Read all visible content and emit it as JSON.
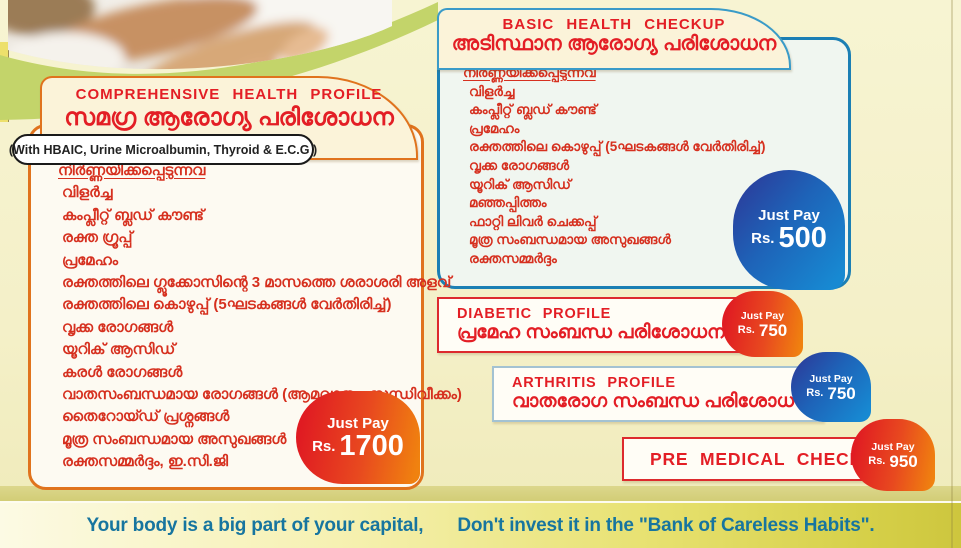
{
  "comprehensive": {
    "title_en": "COMPREHENSIVE HEALTH PROFILE",
    "title_ml": "സമഗ്ര ആരോഗ്യ പരിശോധന",
    "note": "(With HBAIC, Urine Microalbumin, Thyroid & E.C.G )",
    "list_header": "നിർണ്ണയിക്കപ്പെടുന്നവ",
    "items": [
      "വിളർച്ച",
      "കംപ്ലീറ്റ് ബ്ലഡ് കൗണ്ട്",
      "രക്ത ഗ്രൂപ്പ്",
      "പ്രമേഹം",
      "രക്തത്തിലെ ഗ്ലൂക്കോസിന്റെ 3 മാസത്തെ ശരാശരി അളവ്",
      "രക്തത്തിലെ കൊഴുപ്പ് (5ഘടകങ്ങൾ വേർതിരിച്ച്)",
      "വൃക്ക രോഗങ്ങൾ",
      "യൂറിക് ആസിഡ്",
      "കരൾ രോഗങ്ങൾ",
      "വാതസംബന്ധമായ രോഗങ്ങൾ (ആമവാതം, സന്ധിവീക്കം)",
      "തൈറോയ്ഡ് പ്രശ്നങ്ങൾ",
      "മൂത്ര സംബന്ധമായ അസുഖങ്ങൾ",
      "രക്തസമ്മർദ്ദം, ഇ.സി.ജി"
    ],
    "price_label": "Just Pay",
    "currency": "Rs.",
    "price": "1700"
  },
  "basic": {
    "title_en": "BASIC HEALTH CHECKUP",
    "title_ml": "അടിസ്ഥാന ആരോഗ്യ പരിശോധന",
    "list_header": "നിർണ്ണയിക്കപ്പെടുന്നവ",
    "items": [
      "വിളർച്ച",
      "കംപ്ലീറ്റ് ബ്ലഡ് കൗണ്ട്",
      "പ്രമേഹം",
      "രക്തത്തിലെ കൊഴുപ്പ് (5ഘടകങ്ങൾ വേർതിരിച്ച്)",
      "വൃക്ക രോഗങ്ങൾ",
      "യൂറിക് ആസിഡ്",
      "മഞ്ഞപ്പിത്തം",
      "ഫാറ്റി ലിവർ ചെക്കപ്പ്",
      "മൂത്ര സംബന്ധമായ അസുഖങ്ങൾ",
      "രക്തസമ്മർദ്ദം"
    ],
    "price_label": "Just Pay",
    "currency": "Rs.",
    "price": "500"
  },
  "diabetic": {
    "title_en": "DIABETIC PROFILE",
    "title_ml": "പ്രമേഹ സംബന്ധ പരിശോധന",
    "price_label": "Just Pay",
    "currency": "Rs.",
    "price": "750"
  },
  "arthritis": {
    "title_en": "ARTHRITIS PROFILE",
    "title_ml": "വാതരോഗ സംബന്ധ പരിശോധന",
    "price_label": "Just Pay",
    "currency": "Rs.",
    "price": "750"
  },
  "premedical": {
    "title_en": "PRE MEDICAL CHECKUP",
    "price_label": "Just Pay",
    "currency": "Rs.",
    "price": "950"
  },
  "footer": {
    "quote_part1": "Your body is a big part of your capital,",
    "quote_part2": "Don't invest it in the \"Bank of Careless Habits\"."
  },
  "photo": {
    "name": "baby-feet-photo"
  },
  "colors": {
    "background": "#F5F1C9",
    "orange_border": "#E0731D",
    "blue_border": "#1B7FB4",
    "title_red": "#E31E25",
    "list_red": "#D6301F",
    "badge_red_gradient": [
      "#E01B22",
      "#F0820F"
    ],
    "badge_blue_gradient": [
      "#2C3A99",
      "#1789D2"
    ],
    "green_swoosh": "#C3D46A",
    "footer_text": "#17759F",
    "footer_bar_gradient": [
      "#FCFAE4",
      "#CDC63E"
    ]
  }
}
